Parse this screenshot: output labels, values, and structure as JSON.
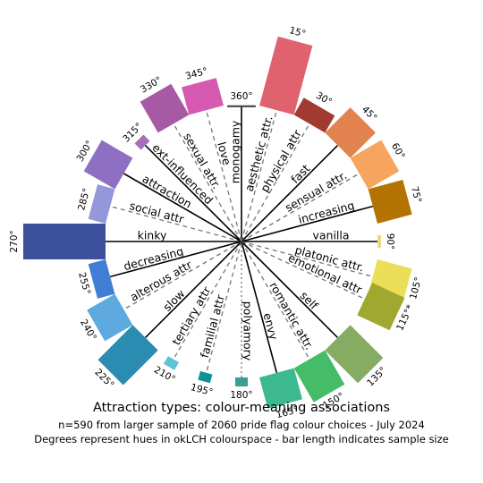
{
  "chart_data": {
    "type": "radial-bar",
    "title": "Attraction types: colour-meaning associations",
    "subtitle_1": "n=590 from larger sample of 2060 pride flag colour choices - July 2024",
    "subtitle_2": "Degrees represent hues in okLCH colourspace - bar length indicates sample size",
    "bars": [
      {
        "hue_label": "15°",
        "hue": 15,
        "color": "#E0626F",
        "size": 80
      },
      {
        "hue_label": "30°",
        "hue": 30,
        "color": "#A23A31",
        "size": 22
      },
      {
        "hue_label": "45°",
        "hue": 45,
        "color": "#E2824E",
        "size": 40
      },
      {
        "hue_label": "60°",
        "hue": 60,
        "color": "#F6A45E",
        "size": 40
      },
      {
        "hue_label": "75°",
        "hue": 75,
        "color": "#B27300",
        "size": 40
      },
      {
        "hue_label": "90°",
        "hue": 90,
        "color": "#EFD77E",
        "size": 4
      },
      {
        "hue_label": "105°",
        "hue": 105,
        "color": "#EBDF58",
        "size": 40
      },
      {
        "hue_label": "115°*",
        "hue": 115,
        "color": "#A1A82F",
        "size": 40
      },
      {
        "hue_label": "135°",
        "hue": 135,
        "color": "#86AC63",
        "size": 52
      },
      {
        "hue_label": "150°",
        "hue": 150,
        "color": "#45BC68",
        "size": 44
      },
      {
        "hue_label": "165°",
        "hue": 165,
        "color": "#3DB990",
        "size": 36
      },
      {
        "hue_label": "180°",
        "hue": 180,
        "color": "#3A9F93",
        "size": 10
      },
      {
        "hue_label": "195°",
        "hue": 195,
        "color": "#0F9294",
        "size": 10
      },
      {
        "hue_label": "210°",
        "hue": 210,
        "color": "#5EC3D4",
        "size": 10
      },
      {
        "hue_label": "225°",
        "hue": 225,
        "color": "#2A8CB1",
        "size": 55
      },
      {
        "hue_label": "240°",
        "hue": 240,
        "color": "#5DA9E0",
        "size": 36
      },
      {
        "hue_label": "255°",
        "hue": 255,
        "color": "#3F7ED4",
        "size": 20
      },
      {
        "hue_label": "270°",
        "hue": 270,
        "color": "#3C509C",
        "size": 92
      },
      {
        "hue_label": "285°",
        "hue": 285,
        "color": "#9497DB",
        "size": 20
      },
      {
        "hue_label": "300°",
        "hue": 300,
        "color": "#8E6FC1",
        "size": 40
      },
      {
        "hue_label": "315°",
        "hue": 315,
        "color": "#A570B9",
        "size": 10
      },
      {
        "hue_label": "330°",
        "hue": 330,
        "color": "#A55AA3",
        "size": 40
      },
      {
        "hue_label": "345°",
        "hue": 345,
        "color": "#D65BB0",
        "size": 32
      },
      {
        "hue_label": "360°",
        "hue": 360,
        "color": "#444444",
        "size": 0
      }
    ],
    "spokes": [
      {
        "label": "monogamy",
        "angle": 0,
        "style": "solid"
      },
      {
        "label": "aesthetic attr.",
        "angle": 15,
        "style": "dashed"
      },
      {
        "label": "physical attr",
        "angle": 30,
        "style": "dashed"
      },
      {
        "label": "fast",
        "angle": 45,
        "style": "solid"
      },
      {
        "label": "sensual attr.",
        "angle": 60,
        "style": "dashed"
      },
      {
        "label": "increasing",
        "angle": 75,
        "style": "solid"
      },
      {
        "label": "vanilla",
        "angle": 90,
        "style": "solid"
      },
      {
        "label": "platonic attr.",
        "angle": 105,
        "style": "dashed"
      },
      {
        "label": "emotional attr",
        "angle": 115,
        "style": "dashed"
      },
      {
        "label": "self",
        "angle": 135,
        "style": "solid"
      },
      {
        "label": "romantic attr.",
        "angle": 150,
        "style": "dashed"
      },
      {
        "label": "envy",
        "angle": 165,
        "style": "solid"
      },
      {
        "label": "polyamory",
        "angle": 180,
        "style": "dotted"
      },
      {
        "label": "familial attr",
        "angle": 195,
        "style": "dashed"
      },
      {
        "label": "tertiary attr",
        "angle": 210,
        "style": "dashed"
      },
      {
        "label": "slow",
        "angle": 225,
        "style": "solid"
      },
      {
        "label": "alterous attr",
        "angle": 240,
        "style": "dashed"
      },
      {
        "label": "decreasing",
        "angle": 255,
        "style": "solid"
      },
      {
        "label": "kinky",
        "angle": 270,
        "style": "solid"
      },
      {
        "label": "social attr",
        "angle": 285,
        "style": "dashed"
      },
      {
        "label": "attraction",
        "angle": 300,
        "style": "solid"
      },
      {
        "label": "ext-influenced",
        "angle": 315,
        "style": "solid"
      },
      {
        "label": "sexual attr.",
        "angle": 330,
        "style": "dashed"
      },
      {
        "label": "love",
        "angle": 345,
        "style": "dashed"
      }
    ]
  }
}
